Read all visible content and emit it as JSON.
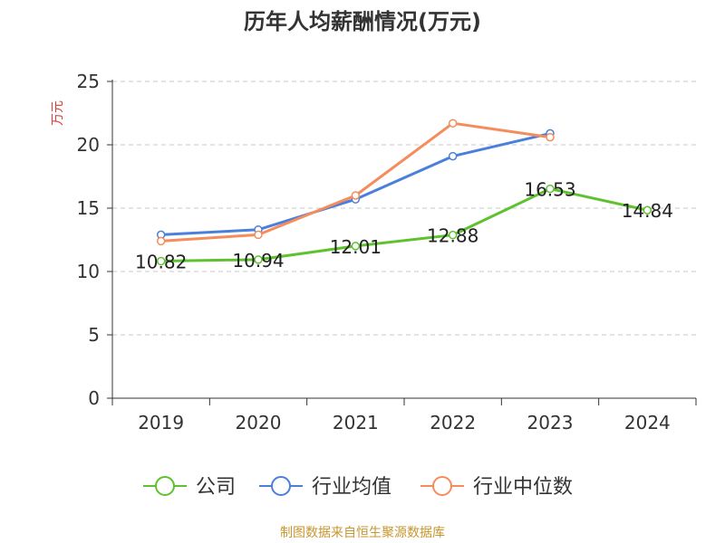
{
  "title": "历年人均薪酬情况(万元)",
  "source": "制图数据来自恒生聚源数据库",
  "colors": {
    "company": "#5ec22f",
    "industry_avg": "#4a7fdb",
    "industry_median": "#f58c5b",
    "source": "#c8962f",
    "ylabel": "#e53935"
  },
  "chart_data": {
    "type": "line",
    "title": "历年人均薪酬情况(万元)",
    "ylabel": "万元",
    "xlabel": "",
    "categories": [
      "2019",
      "2020",
      "2021",
      "2022",
      "2023",
      "2024"
    ],
    "ylim": [
      0,
      25
    ],
    "yticks": [
      0,
      5,
      10,
      15,
      20,
      25
    ],
    "grid": true,
    "legend_position": "bottom",
    "series": [
      {
        "name": "公司",
        "values": [
          10.82,
          10.94,
          12.01,
          12.88,
          16.53,
          14.84
        ],
        "labels": [
          "10.82",
          "10.94",
          "12.01",
          "12.88",
          "16.53",
          "14.84"
        ]
      },
      {
        "name": "行业均值",
        "values": [
          12.9,
          13.3,
          15.7,
          19.1,
          20.9,
          null
        ]
      },
      {
        "name": "行业中位数",
        "values": [
          12.4,
          12.9,
          16.0,
          21.7,
          20.6,
          null
        ]
      }
    ]
  }
}
